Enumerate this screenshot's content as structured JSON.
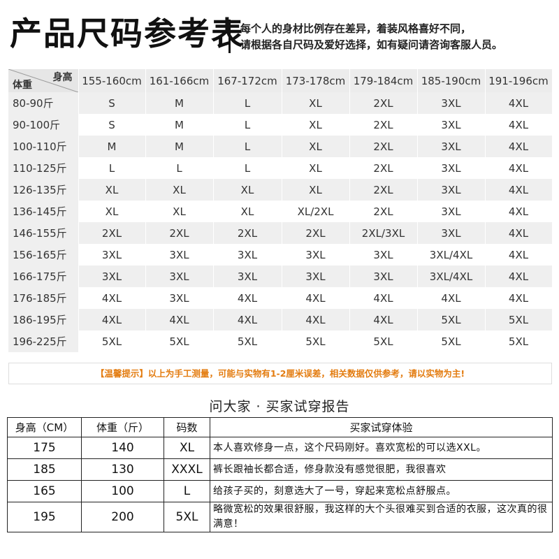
{
  "header": {
    "title": "产品尺码参考表",
    "subtitle_line1": "每个人的身材比例存在差异，着装风格喜好不同，",
    "subtitle_line2": "请根据各自尺码及爱好选择，如有疑问请咨询客服人员。"
  },
  "size_chart": {
    "corner_height_label": "身高",
    "corner_weight_label": "体重",
    "heights": [
      "155-160cm",
      "161-166cm",
      "167-172cm",
      "173-178cm",
      "179-184cm",
      "185-190cm",
      "191-196cm"
    ],
    "rows": [
      {
        "weight": "80-90斤",
        "sizes": [
          "S",
          "M",
          "L",
          "XL",
          "2XL",
          "3XL",
          "4XL"
        ]
      },
      {
        "weight": "90-100斤",
        "sizes": [
          "S",
          "M",
          "L",
          "XL",
          "2XL",
          "3XL",
          "4XL"
        ]
      },
      {
        "weight": "100-110斤",
        "sizes": [
          "M",
          "M",
          "L",
          "XL",
          "2XL",
          "3XL",
          "4XL"
        ]
      },
      {
        "weight": "110-125斤",
        "sizes": [
          "L",
          "L",
          "L",
          "XL",
          "2XL",
          "3XL",
          "4XL"
        ]
      },
      {
        "weight": "126-135斤",
        "sizes": [
          "XL",
          "XL",
          "XL",
          "XL",
          "2XL",
          "3XL",
          "4XL"
        ]
      },
      {
        "weight": "136-145斤",
        "sizes": [
          "XL",
          "XL",
          "XL",
          "XL/2XL",
          "2XL",
          "3XL",
          "4XL"
        ]
      },
      {
        "weight": "146-155斤",
        "sizes": [
          "2XL",
          "2XL",
          "2XL",
          "2XL",
          "2XL/3XL",
          "3XL",
          "4XL"
        ]
      },
      {
        "weight": "156-165斤",
        "sizes": [
          "3XL",
          "3XL",
          "3XL",
          "3XL",
          "3XL",
          "3XL/4XL",
          "4XL"
        ]
      },
      {
        "weight": "166-175斤",
        "sizes": [
          "3XL",
          "3XL",
          "3XL",
          "3XL",
          "3XL",
          "3XL/4XL",
          "4XL"
        ]
      },
      {
        "weight": "176-185斤",
        "sizes": [
          "4XL",
          "3XL",
          "4XL",
          "4XL",
          "4XL",
          "4XL",
          "4XL"
        ]
      },
      {
        "weight": "186-195斤",
        "sizes": [
          "4XL",
          "4XL",
          "4XL",
          "4XL",
          "4XL",
          "5XL",
          "5XL"
        ]
      },
      {
        "weight": "196-225斤",
        "sizes": [
          "5XL",
          "5XL",
          "5XL",
          "5XL",
          "5XL",
          "5XL",
          "5XL"
        ]
      }
    ]
  },
  "note": "【温馨提示】以上为手工测量，可能与实物有1-2厘米误差，相关数据仅供参考，请以实物为主!",
  "report": {
    "title": "问大家 · 买家试穿报告",
    "headers": {
      "height": "身高（CM）",
      "weight": "体重（斤）",
      "size": "码数",
      "experience": "买家试穿体验"
    },
    "rows": [
      {
        "height": "175",
        "weight": "140",
        "size": "XL",
        "experience": "本人喜欢修身一点，这个尺码刚好。喜欢宽松的可以选XXL。"
      },
      {
        "height": "185",
        "weight": "130",
        "size": "XXXL",
        "experience": "裤长跟袖长都合适，修身款没有感觉很肥，我很喜欢"
      },
      {
        "height": "165",
        "weight": "100",
        "size": "L",
        "experience": "给孩子买的，刻意选大了一号，穿起来宽松点舒服点。"
      },
      {
        "height": "195",
        "weight": "200",
        "size": "5XL",
        "experience": "略微宽松的效果很舒服，我这样的大个头很难买到合适的衣服，这次真的很满意！"
      }
    ]
  }
}
